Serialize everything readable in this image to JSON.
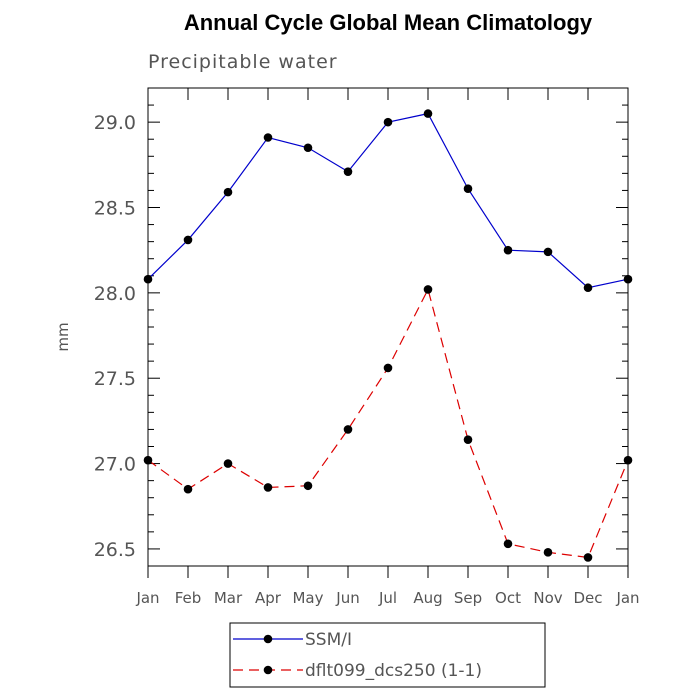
{
  "chart_data": {
    "type": "line",
    "title": "Annual Cycle Global Mean Climatology",
    "subtitle": "Precipitable water",
    "xlabel": "",
    "ylabel": "mm",
    "categories": [
      "Jan",
      "Feb",
      "Mar",
      "Apr",
      "May",
      "Jun",
      "Jul",
      "Aug",
      "Sep",
      "Oct",
      "Nov",
      "Dec",
      "Jan"
    ],
    "ylim": [
      26.4,
      29.2
    ],
    "yticks": [
      26.5,
      27.0,
      27.5,
      28.0,
      28.5,
      29.0
    ],
    "ytick_labels": [
      "26.5",
      "27.0",
      "27.5",
      "28.0",
      "28.5",
      "29.0"
    ],
    "grid": false,
    "legend_position": "bottom-center",
    "series": [
      {
        "name": "SSM/I",
        "color": "#0000cc",
        "line_style": "solid",
        "marker": "circle",
        "values": [
          28.08,
          28.31,
          28.59,
          28.91,
          28.85,
          28.71,
          29.0,
          29.05,
          28.61,
          28.25,
          28.24,
          28.03,
          28.08
        ]
      },
      {
        "name": "dflt099_dcs250 (1-1)",
        "color": "#dd0000",
        "line_style": "dashed",
        "marker": "circle",
        "values": [
          27.02,
          26.85,
          27.0,
          26.86,
          26.87,
          27.2,
          27.56,
          28.02,
          27.14,
          26.53,
          26.48,
          26.45,
          27.02
        ]
      }
    ]
  }
}
